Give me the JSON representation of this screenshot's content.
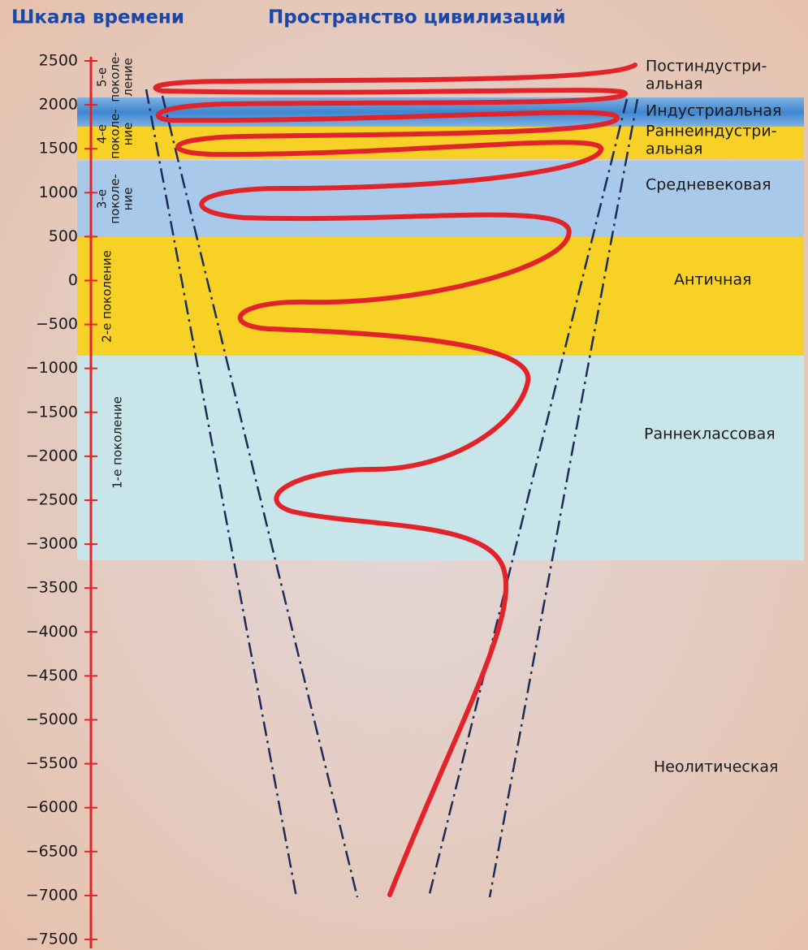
{
  "header": {
    "left_title": "Шкала времени",
    "right_title": "Пространство цивилизаций"
  },
  "timeline": {
    "ticks": [
      "2500",
      "2000",
      "1500",
      "1000",
      "500",
      "0",
      "−500",
      "−1000",
      "−1500",
      "−2000",
      "−2500",
      "−3000",
      "−3500",
      "−4000",
      "−4500",
      "−5000",
      "−5500",
      "−6000",
      "−6500",
      "−7000",
      "−7500"
    ]
  },
  "civilizations": [
    {
      "lines": [
        "Постиндустри-",
        "альная"
      ]
    },
    {
      "lines": [
        "Индустриальная"
      ]
    },
    {
      "lines": [
        "Раннеиндустри-",
        "альная"
      ]
    },
    {
      "lines": [
        "Средневековая"
      ]
    },
    {
      "lines": [
        "Античная"
      ]
    },
    {
      "lines": [
        "Раннеклассовая"
      ]
    },
    {
      "lines": [
        "Неолитическая"
      ]
    }
  ],
  "generations": [
    {
      "lines": [
        "5-е",
        "поколе-",
        "ление"
      ]
    },
    {
      "lines": [
        "4-е",
        "поколе-",
        "ние"
      ]
    },
    {
      "lines": [
        "3-е",
        "поколе-",
        "ние"
      ]
    },
    {
      "lines": [
        "2-е поколение"
      ]
    },
    {
      "lines": [
        "1-е поколение"
      ]
    }
  ]
}
